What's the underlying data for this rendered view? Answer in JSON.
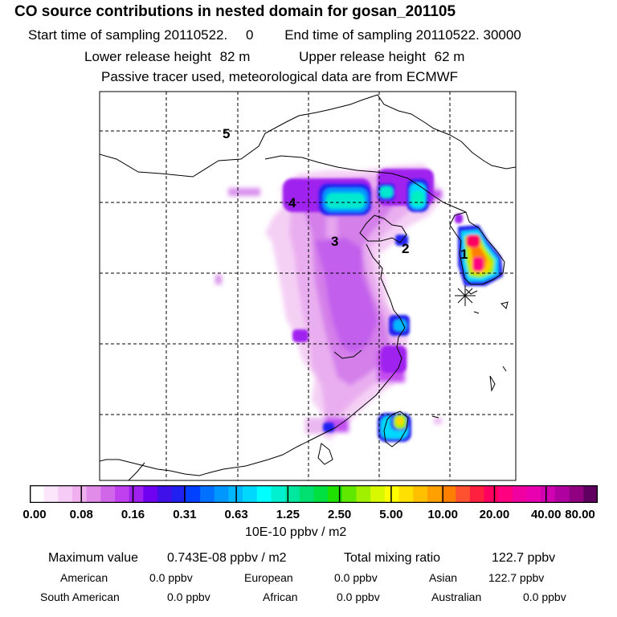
{
  "header": {
    "title": "CO  source contributions in nested domain for gosan_201105",
    "start_label": "Start time of sampling",
    "start_value": "20110522.",
    "start_zero": "0",
    "end_label": "End time of sampling",
    "end_value": "20110522. 30000",
    "lower_label": "Lower release height",
    "lower_value": "82 m",
    "upper_label": "Upper release height",
    "upper_value": "62 m",
    "note": "Passive tracer used, meteorological data are from ECMWF"
  },
  "map": {
    "region_labels": [
      "5",
      "4",
      "3",
      "2",
      "1"
    ],
    "receptor_marker": "star-cross"
  },
  "colorbar": {
    "ticks": [
      "0.00",
      "0.08",
      "0.16",
      "0.31",
      "0.63",
      "1.25",
      "2.50",
      "5.00",
      "10.00",
      "20.00",
      "40.00",
      "80.00"
    ],
    "units": "10E-10 ppbv / m2",
    "colors": [
      "#ffffff",
      "#fbe6fb",
      "#f6ccf6",
      "#f0b0f0",
      "#e08ce8",
      "#d066e8",
      "#c040f0",
      "#a020ef",
      "#7000f0",
      "#4010e8",
      "#2020f0",
      "#0040ff",
      "#0070ff",
      "#0098ff",
      "#00b8ff",
      "#00d8ff",
      "#00ffff",
      "#00f0d0",
      "#00e8a0",
      "#00e070",
      "#00e040",
      "#20e000",
      "#60e800",
      "#a0f000",
      "#d8f800",
      "#ffff00",
      "#ffe000",
      "#ffc000",
      "#ffa000",
      "#ff8000",
      "#ff5030",
      "#ff2040",
      "#ff0060",
      "#ff0080",
      "#f000a0",
      "#e800b0",
      "#d000b0",
      "#b000a0",
      "#900080",
      "#600060"
    ]
  },
  "stats": {
    "max_label": "Maximum value",
    "max_value": "0.743E-08 ppbv / m2",
    "total_label": "Total mixing ratio",
    "total_value": "122.7 ppbv",
    "regions": [
      {
        "name": "American",
        "value": "0.0 ppbv"
      },
      {
        "name": "European",
        "value": "0.0 ppbv"
      },
      {
        "name": "Asian",
        "value": "122.7 ppbv"
      },
      {
        "name": "South American",
        "value": "0.0 ppbv"
      },
      {
        "name": "African",
        "value": "0.0 ppbv"
      },
      {
        "name": "Australian",
        "value": "0.0 ppbv"
      }
    ]
  }
}
